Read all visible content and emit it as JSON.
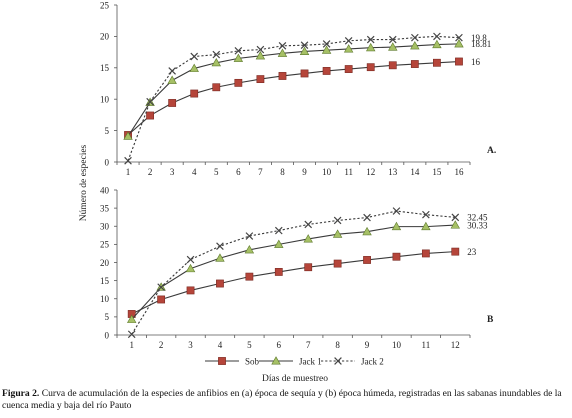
{
  "caption": {
    "label": "Figura 2.",
    "text": " Curva de acumulación de la especies de anfibios en (a) época de sequía y (b) época húmeda, registradas en las sabanas inundables de la cuenca media y baja del río Pauto"
  },
  "y_axis_label": "Número de especies",
  "x_axis_label": "Días de muestreo",
  "legend": [
    "Sob",
    "Jack 1",
    "Jack 2"
  ],
  "colors": {
    "Sob": "#b5453a",
    "Jack 1": "#a6c066",
    "Jack 2": "#444444",
    "line": "#3a3a3a"
  },
  "chart_data": [
    {
      "type": "line",
      "panel_label": "A.",
      "x": [
        1,
        2,
        3,
        4,
        5,
        6,
        7,
        8,
        9,
        10,
        11,
        12,
        13,
        14,
        15,
        16
      ],
      "ylim": [
        0,
        25
      ],
      "yticks": [
        0,
        5,
        10,
        15,
        20,
        25
      ],
      "series": [
        {
          "name": "Sob",
          "marker": "square",
          "end_label": "16",
          "values": [
            4.3,
            7.4,
            9.4,
            10.9,
            11.9,
            12.6,
            13.2,
            13.7,
            14.1,
            14.5,
            14.8,
            15.1,
            15.4,
            15.6,
            15.8,
            16
          ]
        },
        {
          "name": "Jack 1",
          "marker": "triangle",
          "end_label": "18.81",
          "values": [
            4.1,
            9.5,
            13,
            14.9,
            15.8,
            16.5,
            16.9,
            17.3,
            17.6,
            17.8,
            18,
            18.2,
            18.3,
            18.5,
            18.7,
            18.81
          ]
        },
        {
          "name": "Jack 2",
          "marker": "x",
          "end_label": "19.8",
          "values": [
            0.2,
            9.6,
            14.5,
            16.8,
            17.1,
            17.7,
            17.9,
            18.5,
            18.6,
            18.8,
            19.3,
            19.5,
            19.5,
            19.8,
            20,
            19.8
          ]
        }
      ]
    },
    {
      "type": "line",
      "panel_label": "B",
      "x": [
        1,
        2,
        3,
        4,
        5,
        6,
        7,
        8,
        9,
        10,
        11,
        12
      ],
      "ylim": [
        0,
        40
      ],
      "yticks": [
        0,
        5,
        10,
        15,
        20,
        25,
        30,
        35,
        40
      ],
      "series": [
        {
          "name": "Sob",
          "marker": "square",
          "end_label": "23",
          "values": [
            5.8,
            9.8,
            12.3,
            14.2,
            16.1,
            17.4,
            18.7,
            19.7,
            20.7,
            21.6,
            22.5,
            23
          ]
        },
        {
          "name": "Jack 1",
          "marker": "triangle",
          "end_label": "30.33",
          "values": [
            4.3,
            13.2,
            18.3,
            21.2,
            23.5,
            25,
            26.5,
            27.8,
            28.5,
            29.9,
            29.9,
            30.33
          ]
        },
        {
          "name": "Jack 2",
          "marker": "x",
          "end_label": "32.45",
          "values": [
            0.2,
            13.2,
            20.8,
            24.5,
            27.3,
            28.8,
            30.5,
            31.6,
            32.4,
            34.2,
            33.2,
            32.45
          ]
        }
      ]
    }
  ]
}
